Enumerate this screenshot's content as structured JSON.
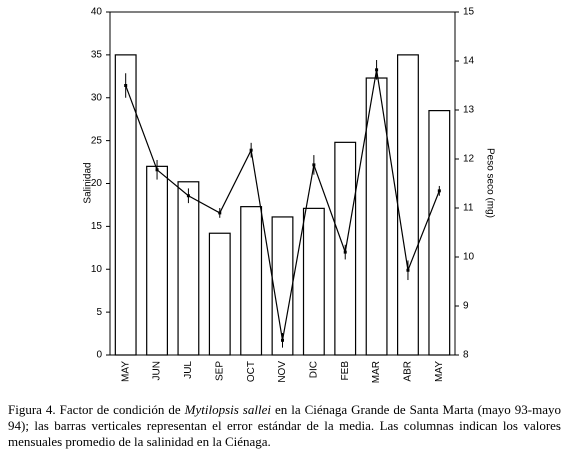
{
  "chart_data": {
    "type": "bar",
    "ylabel": "Salinidad",
    "y2label": "Peso seco (mg)",
    "categories": [
      "MAY",
      "JUN",
      "JUL",
      "SEP",
      "OCT",
      "NOV",
      "DIC",
      "FEB",
      "MAR",
      "ABR",
      "MAY"
    ],
    "series": [
      {
        "type": "bar",
        "color": "#ffffff",
        "values": [
          35,
          22,
          20.2,
          14.2,
          17.3,
          16.1,
          17.1,
          24.8,
          32.3,
          35,
          28.5
        ]
      },
      {
        "type": "line",
        "axis": "y2",
        "color": "#000000",
        "values": [
          13.5,
          11.78,
          11.25,
          10.9,
          12.18,
          8.3,
          11.88,
          10.1,
          13.82,
          9.73,
          11.35
        ],
        "errors": [
          0.25,
          0.2,
          0.15,
          0.1,
          0.15,
          0.15,
          0.2,
          0.15,
          0.2,
          0.2,
          0.1
        ]
      }
    ],
    "ylim": [
      0,
      40
    ],
    "yticks": [
      0,
      5,
      10,
      15,
      20,
      25,
      30,
      35,
      40
    ],
    "y2lim": [
      8,
      15
    ],
    "y2ticks": [
      8,
      9,
      10,
      11,
      12,
      13,
      14,
      15
    ],
    "grid": false
  },
  "caption": {
    "before": "Figura 4. Factor de condición de ",
    "italic": "Mytilopsis sallei",
    "after": " en la Ciénaga Grande de Santa Marta (mayo 93-mayo 94); las barras verticales representan el error estándar de la media. Las columnas indican los valores mensuales promedio de la salinidad en la Ciénaga."
  }
}
